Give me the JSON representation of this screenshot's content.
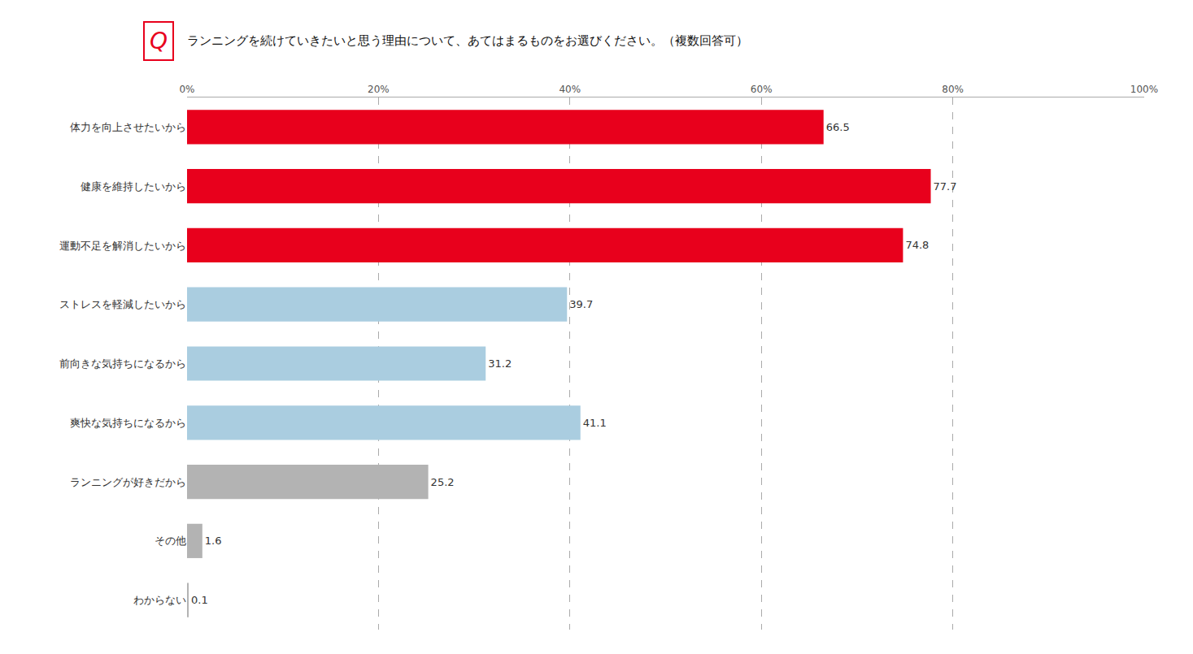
{
  "chart_data": {
    "type": "bar",
    "orientation": "horizontal",
    "title": "ランニングを続けていきたいと思う理由について、あてはまるものをお選びください。（複数回答可）",
    "annotations": [
      {
        "text": "Q",
        "color": "#e8001c"
      }
    ],
    "categories": [
      "体力を向上させたいから",
      "健康を維持したいから",
      "運動不足を解消したいから",
      "ストレスを軽減したいから",
      "前向きな気持ちになるから",
      "爽快な気持ちになるから",
      "ランニングが好きだから",
      "その他",
      "わからない"
    ],
    "values": [
      66.5,
      77.7,
      74.8,
      39.7,
      31.2,
      41.1,
      25.2,
      1.6,
      0.1
    ],
    "colors": [
      "#e8001c",
      "#e8001c",
      "#e8001c",
      "#aacde0",
      "#aacde0",
      "#aacde0",
      "#b3b3b3",
      "#b3b3b3",
      "#b3b3b3"
    ],
    "xlim": [
      0,
      100
    ],
    "xticks": [
      {
        "value": 0,
        "label": "0%"
      },
      {
        "value": 20,
        "label": "20%"
      },
      {
        "value": 40,
        "label": "40%"
      },
      {
        "value": 60,
        "label": "60%"
      },
      {
        "value": 80,
        "label": "80%"
      },
      {
        "value": 100,
        "label": "100%"
      }
    ],
    "grid": true,
    "data_labels": true
  }
}
